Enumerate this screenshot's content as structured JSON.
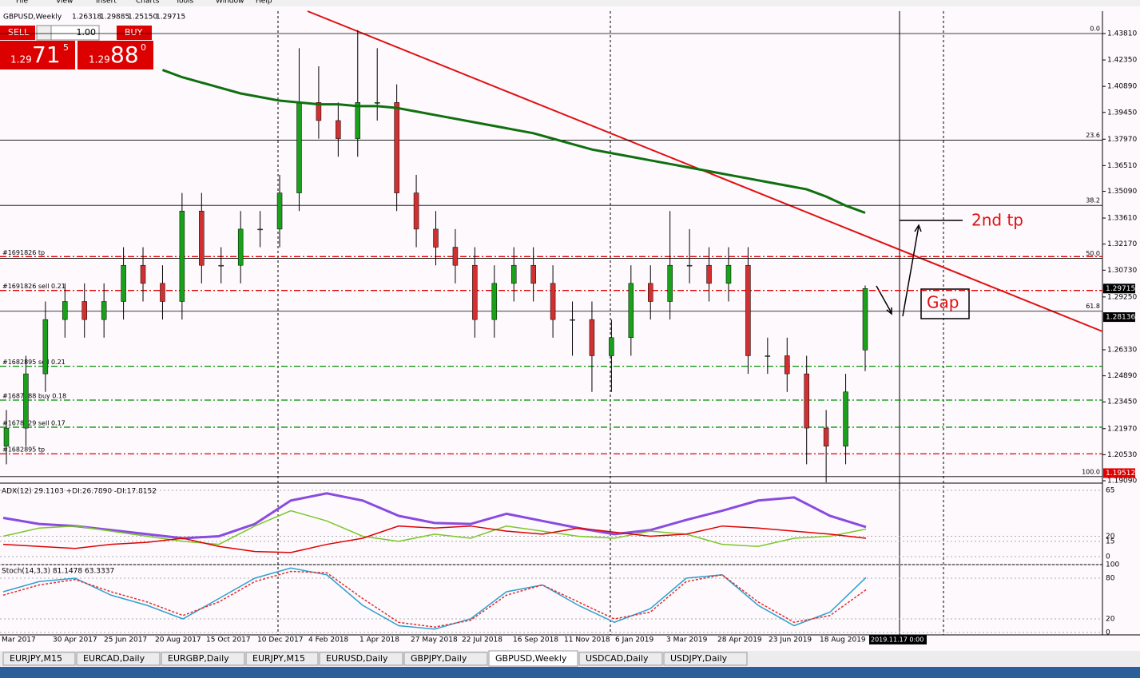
{
  "menu": [
    "File",
    "View",
    "Insert",
    "Charts",
    "Tools",
    "Window",
    "Help"
  ],
  "header": {
    "symbol": "GBPUSD,Weekly",
    "ohlc": [
      "1.26318",
      "1.29885",
      "1.25150",
      "1.29715"
    ]
  },
  "trade_panel": {
    "sell": "SELL",
    "buy": "BUY",
    "lots": "1.00",
    "sell_big": "1.29",
    "sell_pips": "71",
    "sell_frac": "5",
    "buy_big": "1.29",
    "buy_pips": "88",
    "buy_frac": "0"
  },
  "price_axis": {
    "ylim": [
      1.1909,
      1.4381
    ],
    "ticks": [
      {
        "value": 1.4381,
        "label": "1.43810"
      },
      {
        "value": 1.4235,
        "label": "1.42350"
      },
      {
        "value": 1.4089,
        "label": "1.40890"
      },
      {
        "value": 1.3945,
        "label": "1.39450"
      },
      {
        "value": 1.3797,
        "label": "1.37970"
      },
      {
        "value": 1.3651,
        "label": "1.36510"
      },
      {
        "value": 1.3509,
        "label": "1.35090"
      },
      {
        "value": 1.3361,
        "label": "1.33610"
      },
      {
        "value": 1.3217,
        "label": "1.32170"
      },
      {
        "value": 1.3073,
        "label": "1.30730"
      },
      {
        "value": 1.2925,
        "label": "1.29250"
      },
      {
        "value": 1.2633,
        "label": "1.26330"
      },
      {
        "value": 1.2489,
        "label": "1.24890"
      },
      {
        "value": 1.2345,
        "label": "1.23450"
      },
      {
        "value": 1.2197,
        "label": "1.21970"
      },
      {
        "value": 1.2053,
        "label": "1.20530"
      },
      {
        "value": 1.1909,
        "label": "1.19090"
      }
    ],
    "tags": [
      {
        "value": 1.29715,
        "label": "1.29715",
        "color": "#000000"
      },
      {
        "value": 1.28136,
        "label": "1.28136",
        "color": "#000000"
      },
      {
        "value": 1.19512,
        "label": "1.19512",
        "color": "#e00000"
      }
    ]
  },
  "fib_levels": [
    {
      "value": 1.4381,
      "label": "0.0"
    },
    {
      "value": 1.3792,
      "label": "23.6"
    },
    {
      "value": 1.3431,
      "label": "38.2"
    },
    {
      "value": 1.3138,
      "label": "50.0"
    },
    {
      "value": 1.2846,
      "label": "61.8"
    },
    {
      "value": 1.1932,
      "label": "100.0"
    }
  ],
  "order_lines": [
    {
      "value": 1.3148,
      "label": "#1691826 tp",
      "color": "#e00000"
    },
    {
      "value": 1.2961,
      "label": "#1691826 sell 0.21",
      "color": "#e00000"
    },
    {
      "value": 1.2542,
      "label": "#1682895 sell 0.21",
      "color": "#009000"
    },
    {
      "value": 1.2355,
      "label": "#1687788 buy 0.18",
      "color": "#009000"
    },
    {
      "value": 1.2205,
      "label": "#1678329 sell 0.17",
      "color": "#009000"
    },
    {
      "value": 1.2058,
      "label": "#1682895 tp",
      "color": "#e00000"
    }
  ],
  "dates": [
    "Mar 2017",
    "30 Apr 2017",
    "25 Jun 2017",
    "20 Aug 2017",
    "15 Oct 2017",
    "10 Dec 2017",
    "4 Feb 2018",
    "1 Apr 2018",
    "27 May 2018",
    "22 Jul 2018",
    "16 Sep 2018",
    "11 Nov 2018",
    "6 Jan 2019",
    "3 Mar 2019",
    "28 Apr 2019",
    "23 Jun 2019",
    "18 Aug 2019"
  ],
  "cursor_date": "2019.11.17 0:00",
  "candles": {
    "open": [
      1.21,
      1.22,
      1.25,
      1.28,
      1.29,
      1.28,
      1.29,
      1.31,
      1.3,
      1.29,
      1.34,
      1.31,
      1.31,
      1.33,
      1.33,
      1.35,
      1.4,
      1.39,
      1.38,
      1.4,
      1.4,
      1.35,
      1.33,
      1.32,
      1.31,
      1.28,
      1.3,
      1.31,
      1.3,
      1.28,
      1.28,
      1.26,
      1.27,
      1.3,
      1.29,
      1.31,
      1.31,
      1.3,
      1.31,
      1.26,
      1.26,
      1.25,
      1.22,
      1.21,
      1.26318
    ],
    "high": [
      1.23,
      1.26,
      1.29,
      1.3,
      1.3,
      1.3,
      1.32,
      1.32,
      1.31,
      1.35,
      1.35,
      1.32,
      1.34,
      1.34,
      1.36,
      1.43,
      1.42,
      1.4,
      1.44,
      1.43,
      1.41,
      1.36,
      1.34,
      1.33,
      1.32,
      1.31,
      1.32,
      1.32,
      1.31,
      1.29,
      1.29,
      1.28,
      1.31,
      1.31,
      1.34,
      1.33,
      1.32,
      1.32,
      1.32,
      1.27,
      1.27,
      1.26,
      1.23,
      1.25,
      1.29885
    ],
    "low": [
      1.2,
      1.21,
      1.24,
      1.27,
      1.27,
      1.27,
      1.28,
      1.29,
      1.28,
      1.28,
      1.3,
      1.3,
      1.3,
      1.32,
      1.32,
      1.34,
      1.38,
      1.37,
      1.37,
      1.39,
      1.34,
      1.32,
      1.31,
      1.3,
      1.27,
      1.27,
      1.29,
      1.29,
      1.27,
      1.26,
      1.24,
      1.24,
      1.26,
      1.28,
      1.28,
      1.3,
      1.29,
      1.29,
      1.25,
      1.25,
      1.24,
      1.2,
      1.19,
      1.2,
      1.2515
    ],
    "close": [
      1.22,
      1.25,
      1.28,
      1.29,
      1.28,
      1.29,
      1.31,
      1.3,
      1.29,
      1.34,
      1.31,
      1.31,
      1.33,
      1.33,
      1.35,
      1.4,
      1.39,
      1.38,
      1.4,
      1.4,
      1.35,
      1.33,
      1.32,
      1.31,
      1.28,
      1.3,
      1.31,
      1.3,
      1.28,
      1.28,
      1.26,
      1.27,
      1.3,
      1.29,
      1.31,
      1.31,
      1.3,
      1.31,
      1.26,
      1.26,
      1.25,
      1.22,
      1.21,
      1.24,
      1.29715
    ]
  },
  "ma": {
    "color": "#107010",
    "values": [
      null,
      null,
      null,
      null,
      null,
      null,
      null,
      null,
      1.418,
      1.414,
      1.411,
      1.408,
      1.405,
      1.403,
      1.401,
      1.4,
      1.399,
      1.399,
      1.398,
      1.398,
      1.397,
      1.395,
      1.393,
      1.391,
      1.389,
      1.387,
      1.385,
      1.383,
      1.38,
      1.377,
      1.374,
      1.372,
      1.37,
      1.368,
      1.366,
      1.364,
      1.362,
      1.36,
      1.358,
      1.356,
      1.354,
      1.352,
      1.348,
      1.343,
      1.339
    ]
  },
  "annotations": {
    "second_tp": "2nd tp",
    "gap": "Gap"
  },
  "adx": {
    "label": "ADX(12) 29.1103 +DI:26.7890 -DI:17.8152",
    "ylim": [
      0,
      65
    ],
    "yticks": [
      65,
      20,
      15,
      0
    ],
    "series": [
      {
        "color": "#8a4be0",
        "values": [
          38,
          32,
          30,
          26,
          22,
          18,
          20,
          32,
          55,
          62,
          55,
          40,
          33,
          32,
          42,
          35,
          28,
          22,
          26,
          36,
          45,
          55,
          58,
          40,
          29
        ]
      },
      {
        "color": "#7cc828",
        "values": [
          20,
          28,
          30,
          25,
          20,
          15,
          12,
          30,
          45,
          35,
          20,
          15,
          22,
          18,
          30,
          25,
          20,
          18,
          25,
          22,
          12,
          10,
          18,
          20,
          27
        ]
      },
      {
        "color": "#e00000",
        "values": [
          12,
          10,
          8,
          12,
          14,
          18,
          10,
          5,
          4,
          12,
          18,
          30,
          28,
          30,
          25,
          22,
          28,
          24,
          20,
          22,
          30,
          28,
          25,
          22,
          18
        ]
      }
    ]
  },
  "stoch": {
    "label": "Stoch(14,3,3) 81.1478 63.3337",
    "ylim": [
      0,
      100
    ],
    "yticks": [
      100,
      80,
      20,
      0
    ],
    "series": [
      {
        "color": "#30a0d0",
        "values": [
          60,
          75,
          80,
          55,
          40,
          20,
          50,
          80,
          95,
          85,
          40,
          10,
          5,
          20,
          60,
          70,
          40,
          15,
          35,
          80,
          85,
          40,
          10,
          30,
          81
        ]
      },
      {
        "color": "#e03030",
        "values": [
          55,
          70,
          78,
          60,
          45,
          25,
          45,
          75,
          90,
          88,
          50,
          15,
          8,
          18,
          55,
          70,
          45,
          20,
          30,
          75,
          85,
          45,
          15,
          25,
          63
        ]
      }
    ]
  },
  "tabs": [
    "EURJPY,M15",
    "EURCAD,Daily",
    "EURGBP,Daily",
    "EURJPY,M15",
    "EURUSD,Daily",
    "GBPJPY,Daily",
    "GBPUSD,Weekly",
    "USDCAD,Daily",
    "USDJPY,Daily"
  ],
  "active_tab": 6
}
